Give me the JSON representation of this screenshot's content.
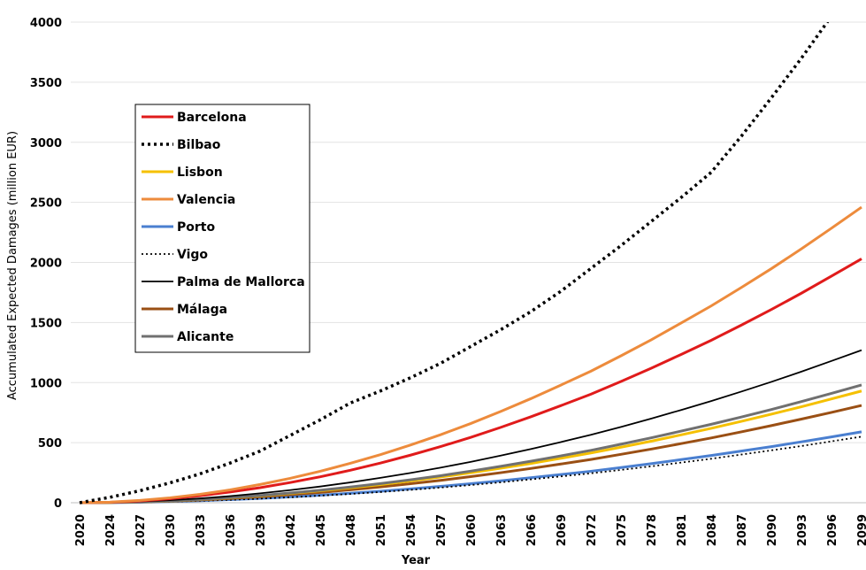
{
  "chart_data": {
    "type": "line",
    "x_label": "Year",
    "y_label": "Accumulated Expected Damages (million EUR)",
    "categories": [
      "2020",
      "2024",
      "2027",
      "2030",
      "2033",
      "2036",
      "2039",
      "2042",
      "2045",
      "2048",
      "2051",
      "2054",
      "2057",
      "2060",
      "2063",
      "2066",
      "2069",
      "2072",
      "2075",
      "2078",
      "2081",
      "2084",
      "2087",
      "2090",
      "2093",
      "2096",
      "2099"
    ],
    "ylim": [
      0,
      4000
    ],
    "yticks": [
      0,
      500,
      1000,
      1500,
      2000,
      2500,
      3000,
      3500,
      4000
    ],
    "grid": true,
    "legend": "upper left",
    "series": [
      {
        "name": "Barcelona",
        "color": "#e01b1b",
        "style": "solid",
        "width": 3,
        "values": [
          0,
          4,
          15,
          33,
          58,
          89,
          125,
          168,
          216,
          270,
          330,
          396,
          467,
          544,
          627,
          715,
          808,
          903,
          1009,
          1119,
          1234,
          1352,
          1478,
          1608,
          1744,
          1886,
          2030
        ]
      },
      {
        "name": "Bilbao",
        "color": "#000000",
        "style": "dotted",
        "width": 3.5,
        "values": [
          0,
          45,
          100,
          165,
          240,
          330,
          430,
          560,
          690,
          830,
          930,
          1040,
          1160,
          1300,
          1440,
          1590,
          1760,
          1950,
          2140,
          2340,
          2540,
          2750,
          3050,
          3370,
          3700,
          4050,
          4420
        ]
      },
      {
        "name": "Lisbon",
        "color": "#f5c000",
        "style": "solid",
        "width": 3,
        "values": [
          0,
          2,
          7,
          15,
          27,
          41,
          57,
          77,
          99,
          124,
          151,
          181,
          214,
          249,
          287,
          327,
          370,
          414,
          462,
          512,
          565,
          619,
          677,
          737,
          799,
          864,
          930
        ]
      },
      {
        "name": "Valencia",
        "color": "#ed8b3c",
        "style": "solid",
        "width": 3,
        "values": [
          0,
          5,
          19,
          41,
          70,
          107,
          152,
          203,
          262,
          328,
          400,
          480,
          566,
          659,
          760,
          866,
          979,
          1095,
          1223,
          1355,
          1496,
          1638,
          1791,
          1948,
          2113,
          2285,
          2460
        ]
      },
      {
        "name": "Porto",
        "color": "#4a7fd0",
        "style": "solid",
        "width": 3,
        "values": [
          0,
          1,
          4,
          10,
          17,
          26,
          36,
          49,
          63,
          79,
          96,
          115,
          136,
          158,
          182,
          208,
          235,
          262,
          293,
          325,
          359,
          393,
          430,
          467,
          507,
          548,
          590
        ]
      },
      {
        "name": "Vigo",
        "color": "#000000",
        "style": "dotted",
        "width": 1.8,
        "values": [
          0,
          1,
          4,
          9,
          16,
          24,
          34,
          45,
          59,
          73,
          89,
          107,
          126,
          147,
          170,
          194,
          219,
          245,
          273,
          303,
          334,
          366,
          401,
          436,
          472,
          511,
          550
        ]
      },
      {
        "name": "Palma de Mallorca",
        "color": "#000000",
        "style": "solid",
        "width": 1.8,
        "values": [
          0,
          3,
          10,
          21,
          36,
          55,
          78,
          105,
          135,
          169,
          207,
          248,
          292,
          340,
          392,
          447,
          505,
          565,
          631,
          700,
          772,
          846,
          925,
          1006,
          1091,
          1180,
          1270
        ]
      },
      {
        "name": "Málaga",
        "color": "#9a4f14",
        "style": "solid",
        "width": 3,
        "values": [
          0,
          2,
          6,
          13,
          23,
          35,
          50,
          67,
          86,
          108,
          132,
          158,
          186,
          217,
          250,
          285,
          322,
          360,
          403,
          446,
          492,
          539,
          590,
          642,
          696,
          752,
          810
        ]
      },
      {
        "name": "Alicante",
        "color": "#707070",
        "style": "solid",
        "width": 3,
        "values": [
          0,
          2,
          7,
          16,
          28,
          43,
          60,
          81,
          104,
          131,
          159,
          191,
          225,
          263,
          303,
          345,
          390,
          436,
          487,
          540,
          596,
          653,
          713,
          776,
          842,
          910,
          980
        ]
      }
    ]
  }
}
